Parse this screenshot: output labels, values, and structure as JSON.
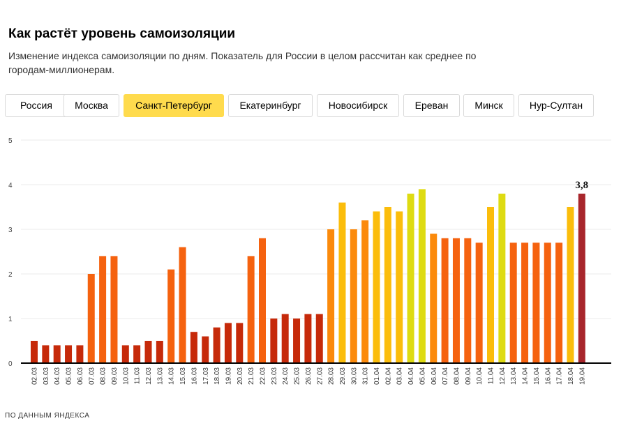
{
  "header": {
    "title": "Как растёт уровень самоизоляции",
    "subtitle": "Изменение индекса самоизоляции по дням. Показатель для России в целом рассчитан как среднее по городам-миллионерам."
  },
  "tabs": [
    {
      "label": "Россия",
      "active": false
    },
    {
      "label": "Москва",
      "active": false
    },
    {
      "label": "Санкт-Петербург",
      "active": true
    },
    {
      "label": "Екатеринбург",
      "active": false
    },
    {
      "label": "Новосибирск",
      "active": false
    },
    {
      "label": "Ереван",
      "active": false
    },
    {
      "label": "Минск",
      "active": false
    },
    {
      "label": "Нур-Султан",
      "active": false
    }
  ],
  "colors": {
    "active_tab": "#ffdb4d",
    "scale": [
      "#c62a0a",
      "#f5620f",
      "#fb8a0c",
      "#fbbd0b",
      "#dedb12"
    ],
    "highlight": "#a8262c"
  },
  "chart_data": {
    "type": "bar",
    "ylim": [
      0,
      5
    ],
    "yticks": [
      "0",
      "1",
      "2",
      "3",
      "4",
      "5"
    ],
    "grid": true,
    "categories": [
      "02.03",
      "03.03",
      "04.03",
      "05.03",
      "06.03",
      "07.03",
      "08.03",
      "09.03",
      "10.03",
      "11.03",
      "12.03",
      "13.03",
      "14.03",
      "15.03",
      "16.03",
      "17.03",
      "18.03",
      "19.03",
      "20.03",
      "21.03",
      "22.03",
      "23.03",
      "24.03",
      "25.03",
      "26.03",
      "27.03",
      "28.03",
      "29.03",
      "30.03",
      "31.03",
      "01.04",
      "02.04",
      "03.04",
      "04.04",
      "05.04",
      "06.04",
      "07.04",
      "08.04",
      "09.04",
      "10.04",
      "11.04",
      "12.04",
      "13.04",
      "14.04",
      "15.04",
      "16.04",
      "17.04",
      "18.04",
      "19.04"
    ],
    "values": [
      0.5,
      0.4,
      0.4,
      0.4,
      0.4,
      2.0,
      2.4,
      2.4,
      0.4,
      0.4,
      0.5,
      0.5,
      2.1,
      2.6,
      0.7,
      0.6,
      0.8,
      0.9,
      0.9,
      2.4,
      2.8,
      1.0,
      1.1,
      1.0,
      1.1,
      1.1,
      3.0,
      3.6,
      3.0,
      3.2,
      3.4,
      3.5,
      3.4,
      3.8,
      3.9,
      2.9,
      2.8,
      2.8,
      2.8,
      2.7,
      3.5,
      3.8,
      2.7,
      2.7,
      2.7,
      2.7,
      2.7,
      3.5,
      3.8
    ],
    "highlight_label": "3,8"
  },
  "source": "ПО ДАННЫМ ЯНДЕКСА"
}
